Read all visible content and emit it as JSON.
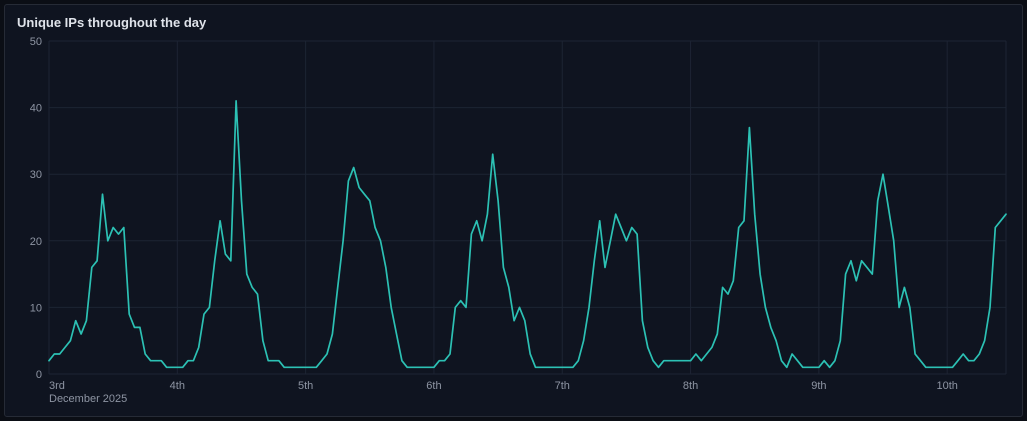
{
  "colors": {
    "page_background": "#0b0e15",
    "panel_background": "#0f1420",
    "panel_border": "#262b36",
    "grid": "#1d2433",
    "axis_text": "#8e95a3",
    "title_text": "#dfe3ea",
    "series_line": "#2cc1b4"
  },
  "chart_data": {
    "type": "line",
    "title": "Unique IPs throughout the day",
    "series_name": "Unique IPs",
    "ylim": [
      0,
      50
    ],
    "y_ticks": [
      0,
      10,
      20,
      30,
      40,
      50
    ],
    "x_unit": "day-of-month with hourly samples",
    "legend": "none",
    "grid": "on",
    "days": [
      {
        "day": 3,
        "label": "3rd",
        "sub": "December 2025",
        "hourly": [
          2,
          3,
          3,
          4,
          5,
          8,
          6,
          8,
          16,
          17,
          27,
          20,
          22,
          21,
          22,
          9,
          7,
          7,
          3,
          2,
          2,
          2,
          1,
          1
        ]
      },
      {
        "day": 4,
        "label": "4th",
        "hourly": [
          1,
          1,
          2,
          2,
          4,
          9,
          10,
          17,
          23,
          18,
          17,
          41,
          26,
          15,
          13,
          12,
          5,
          2,
          2,
          2,
          1,
          1,
          1,
          1
        ]
      },
      {
        "day": 5,
        "label": "5th",
        "hourly": [
          1,
          1,
          1,
          2,
          3,
          6,
          13,
          20,
          29,
          31,
          28,
          27,
          26,
          22,
          20,
          16,
          10,
          6,
          2,
          1,
          1,
          1,
          1,
          1
        ]
      },
      {
        "day": 6,
        "label": "6th",
        "hourly": [
          1,
          2,
          2,
          3,
          10,
          11,
          10,
          21,
          23,
          20,
          24,
          33,
          26,
          16,
          13,
          8,
          10,
          8,
          3,
          1,
          1,
          1,
          1,
          1
        ]
      },
      {
        "day": 7,
        "label": "7th",
        "hourly": [
          1,
          1,
          1,
          2,
          5,
          10,
          17,
          23,
          16,
          20,
          24,
          22,
          20,
          22,
          21,
          8,
          4,
          2,
          1,
          2,
          2,
          2,
          2,
          2
        ]
      },
      {
        "day": 8,
        "label": "8th",
        "hourly": [
          2,
          3,
          2,
          3,
          4,
          6,
          13,
          12,
          14,
          22,
          23,
          37,
          24,
          15,
          10,
          7,
          5,
          2,
          1,
          3,
          2,
          1,
          1,
          1
        ]
      },
      {
        "day": 9,
        "label": "9th",
        "hourly": [
          1,
          2,
          1,
          2,
          5,
          15,
          17,
          14,
          17,
          16,
          15,
          26,
          30,
          25,
          20,
          10,
          13,
          10,
          3,
          2,
          1,
          1,
          1,
          1
        ]
      },
      {
        "day": 10,
        "label": "10th",
        "hourly": [
          1,
          1,
          2,
          3,
          2,
          2,
          3,
          5,
          10,
          22,
          23,
          24
        ]
      }
    ]
  }
}
